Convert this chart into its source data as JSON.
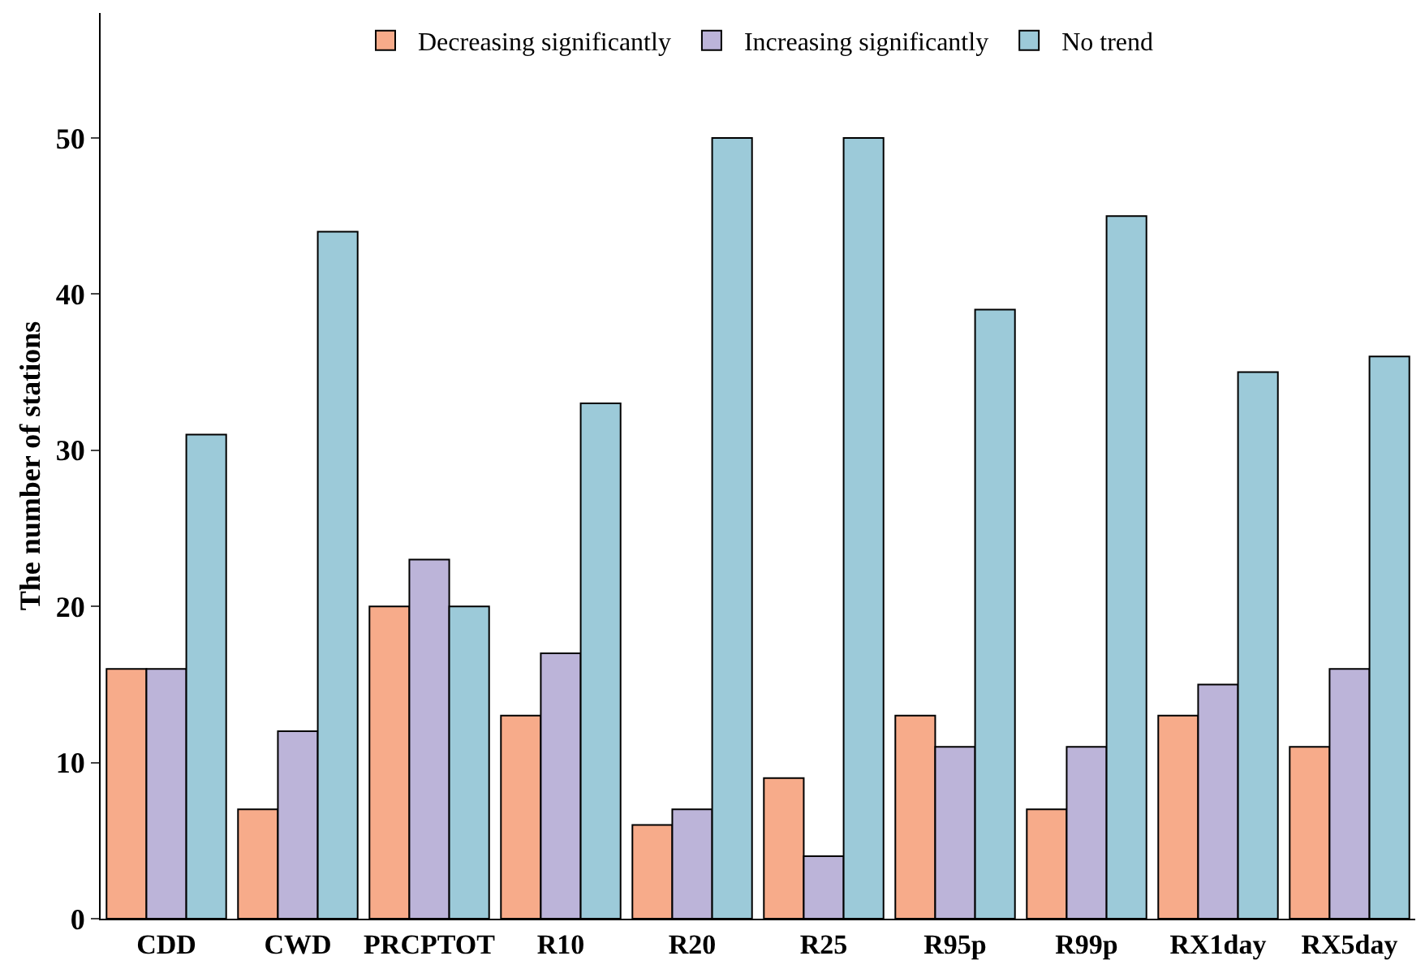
{
  "chart_data": {
    "type": "bar",
    "ylabel": "The number of stations",
    "categories": [
      "CDD",
      "CWD",
      "PRCPTOT",
      "R10",
      "R20",
      "R25",
      "R95p",
      "R99p",
      "RX1day",
      "RX5day"
    ],
    "series": [
      {
        "name": "Decreasing significantly",
        "color": "#f7ab8a",
        "values": [
          16,
          7,
          20,
          13,
          6,
          9,
          13,
          7,
          13,
          11
        ]
      },
      {
        "name": "Increasing significantly",
        "color": "#bcb4d9",
        "values": [
          16,
          12,
          23,
          17,
          7,
          4,
          11,
          11,
          15,
          16
        ]
      },
      {
        "name": "No trend",
        "color": "#9ccad9",
        "values": [
          31,
          44,
          20,
          33,
          50,
          50,
          39,
          45,
          35,
          36
        ]
      }
    ],
    "ylim": [
      0,
      58
    ],
    "yticks": [
      0,
      10,
      20,
      30,
      40,
      50
    ],
    "grid": false,
    "legend": "top"
  }
}
